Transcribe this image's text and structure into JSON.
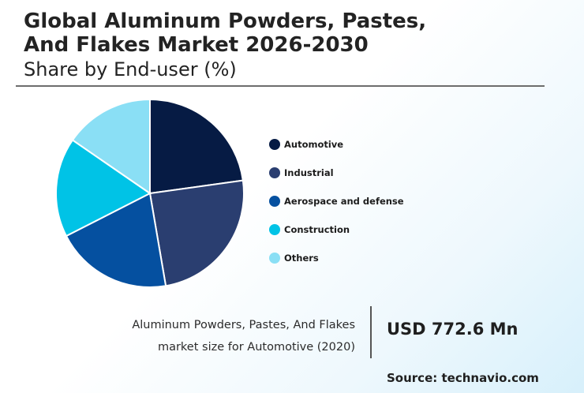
{
  "chart_data": {
    "type": "pie",
    "title": "Global Aluminum Powders, Pastes, And Flakes Market 2026-2030",
    "title_lines": [
      "Global Aluminum Powders, Pastes,",
      "And Flakes Market 2026-2030"
    ],
    "subtitle": "Share by End-user (%)",
    "legend_position": "right",
    "slices": [
      {
        "label": "Automotive",
        "value": 22.8,
        "color": "#061b44"
      },
      {
        "label": "Industrial",
        "value": 24.5,
        "color": "#2a3e70"
      },
      {
        "label": "Aerospace and defense",
        "value": 20.2,
        "color": "#0550a0"
      },
      {
        "label": "Construction",
        "value": 17.1,
        "color": "#00c3e6"
      },
      {
        "label": "Others",
        "value": 15.4,
        "color": "#8adff5"
      }
    ]
  },
  "footer": {
    "market_text_lines": [
      "Aluminum Powders, Pastes, And Flakes",
      "market size for Automotive (2020)"
    ],
    "market_value": "USD 772.6 Mn",
    "source": "Source: technavio.com"
  }
}
